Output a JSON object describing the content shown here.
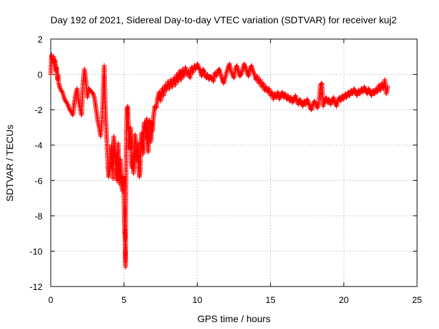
{
  "chart_data": {
    "type": "scatter",
    "title": "Day 192 of 2021, Sidereal Day-to-day VTEC variation (SDTVAR) for receiver kuj2",
    "xlabel": "GPS time / hours",
    "ylabel": "SDTVAR / TECUs",
    "xlim": [
      0,
      25
    ],
    "ylim": [
      -12,
      2
    ],
    "xticks": [
      0,
      5,
      10,
      15,
      20,
      25
    ],
    "yticks": [
      2,
      0,
      -2,
      -4,
      -6,
      -8,
      -10,
      -12
    ],
    "grid": true,
    "marker": "plus",
    "color": "#ff0000",
    "series": [
      {
        "name": "SDTVAR",
        "points": [
          [
            0.0,
            0.0
          ],
          [
            0.05,
            1.1
          ],
          [
            0.1,
            0.9
          ],
          [
            0.15,
            0.7
          ],
          [
            0.2,
            1.0
          ],
          [
            0.25,
            0.5
          ],
          [
            0.3,
            0.8
          ],
          [
            0.35,
            0.2
          ],
          [
            0.4,
            0.4
          ],
          [
            0.45,
            -0.3
          ],
          [
            0.5,
            0.0
          ],
          [
            0.55,
            -0.5
          ],
          [
            0.6,
            -0.7
          ],
          [
            0.7,
            -0.9
          ],
          [
            0.8,
            -1.0
          ],
          [
            0.9,
            -1.3
          ],
          [
            1.0,
            -1.5
          ],
          [
            1.1,
            -1.6
          ],
          [
            1.2,
            -1.8
          ],
          [
            1.3,
            -2.0
          ],
          [
            1.4,
            -2.1
          ],
          [
            1.5,
            -2.3
          ],
          [
            1.6,
            -1.7
          ],
          [
            1.7,
            -1.1
          ],
          [
            1.8,
            -0.8
          ],
          [
            1.9,
            -1.5
          ],
          [
            2.0,
            -1.9
          ],
          [
            2.1,
            -2.3
          ],
          [
            2.2,
            -0.5
          ],
          [
            2.3,
            0.3
          ],
          [
            2.4,
            -0.4
          ],
          [
            2.5,
            -1.3
          ],
          [
            2.6,
            -0.8
          ],
          [
            2.7,
            -0.9
          ],
          [
            2.8,
            -1.0
          ],
          [
            2.9,
            -1.1
          ],
          [
            3.0,
            -1.4
          ],
          [
            3.1,
            -2.0
          ],
          [
            3.2,
            -2.6
          ],
          [
            3.3,
            -3.0
          ],
          [
            3.4,
            -3.5
          ],
          [
            3.5,
            -2.6
          ],
          [
            3.6,
            -0.5
          ],
          [
            3.65,
            0.5
          ],
          [
            3.7,
            -1.2
          ],
          [
            3.75,
            -2.5
          ],
          [
            3.8,
            -3.3
          ],
          [
            3.85,
            -4.2
          ],
          [
            3.9,
            -5.2
          ],
          [
            3.95,
            -5.8
          ],
          [
            4.0,
            -5.5
          ],
          [
            4.05,
            -4.8
          ],
          [
            4.1,
            -5.2
          ],
          [
            4.15,
            -4.0
          ],
          [
            4.2,
            -4.6
          ],
          [
            4.25,
            -5.9
          ],
          [
            4.3,
            -3.5
          ],
          [
            4.35,
            -4.3
          ],
          [
            4.4,
            -5.0
          ],
          [
            4.45,
            -4.5
          ],
          [
            4.5,
            -6.0
          ],
          [
            4.55,
            -5.3
          ],
          [
            4.6,
            -3.9
          ],
          [
            4.65,
            -5.5
          ],
          [
            4.7,
            -6.2
          ],
          [
            4.75,
            -4.8
          ],
          [
            4.8,
            -5.6
          ],
          [
            4.85,
            -6.3
          ],
          [
            4.9,
            -6.6
          ],
          [
            4.95,
            -5.8
          ],
          [
            5.0,
            -7.0
          ],
          [
            5.02,
            -8.2
          ],
          [
            5.04,
            -8.9
          ],
          [
            5.06,
            -9.0
          ],
          [
            5.08,
            -9.7
          ],
          [
            5.1,
            -10.9
          ],
          [
            5.12,
            -7.5
          ],
          [
            5.15,
            -4.0
          ],
          [
            5.2,
            -2.0
          ],
          [
            5.25,
            -1.8
          ],
          [
            5.3,
            -2.8
          ],
          [
            5.35,
            -3.5
          ],
          [
            5.4,
            -4.2
          ],
          [
            5.45,
            -3.0
          ],
          [
            5.5,
            -5.0
          ],
          [
            5.55,
            -5.3
          ],
          [
            5.6,
            -4.5
          ],
          [
            5.65,
            -5.6
          ],
          [
            5.7,
            -4.8
          ],
          [
            5.75,
            -3.4
          ],
          [
            5.8,
            -3.8
          ],
          [
            5.85,
            -4.6
          ],
          [
            5.9,
            -4.9
          ],
          [
            5.95,
            -3.9
          ],
          [
            6.0,
            -5.2
          ],
          [
            6.05,
            -5.8
          ],
          [
            6.1,
            -5.5
          ],
          [
            6.15,
            -4.0
          ],
          [
            6.2,
            -3.3
          ],
          [
            6.25,
            -4.2
          ],
          [
            6.3,
            -4.5
          ],
          [
            6.35,
            -3.0
          ],
          [
            6.4,
            -2.7
          ],
          [
            6.45,
            -3.6
          ],
          [
            6.5,
            -3.1
          ],
          [
            6.55,
            -2.5
          ],
          [
            6.6,
            -3.9
          ],
          [
            6.65,
            -4.4
          ],
          [
            6.7,
            -3.2
          ],
          [
            6.75,
            -2.6
          ],
          [
            6.8,
            -2.9
          ],
          [
            6.85,
            -3.8
          ],
          [
            6.9,
            -2.7
          ],
          [
            6.95,
            -3.2
          ],
          [
            7.0,
            -2.5
          ],
          [
            7.1,
            -1.8
          ],
          [
            7.2,
            -1.9
          ],
          [
            7.3,
            -1.3
          ],
          [
            7.4,
            -1.0
          ],
          [
            7.5,
            -1.5
          ],
          [
            7.6,
            -0.8
          ],
          [
            7.7,
            -1.2
          ],
          [
            7.8,
            -0.6
          ],
          [
            7.9,
            -0.9
          ],
          [
            8.0,
            -0.4
          ],
          [
            8.1,
            -0.8
          ],
          [
            8.2,
            -0.3
          ],
          [
            8.3,
            -0.7
          ],
          [
            8.4,
            -0.2
          ],
          [
            8.5,
            -0.6
          ],
          [
            8.6,
            0.0
          ],
          [
            8.7,
            -0.4
          ],
          [
            8.8,
            0.2
          ],
          [
            8.9,
            -0.3
          ],
          [
            9.0,
            0.3
          ],
          [
            9.1,
            -0.1
          ],
          [
            9.2,
            0.4
          ],
          [
            9.3,
            0.0
          ],
          [
            9.4,
            0.2
          ],
          [
            9.5,
            -0.2
          ],
          [
            9.6,
            0.4
          ],
          [
            9.7,
            0.1
          ],
          [
            9.8,
            0.5
          ],
          [
            9.9,
            0.3
          ],
          [
            10.0,
            0.6
          ],
          [
            10.1,
            0.4
          ],
          [
            10.2,
            0.2
          ],
          [
            10.3,
            -0.1
          ],
          [
            10.4,
            0.3
          ],
          [
            10.5,
            0.1
          ],
          [
            10.6,
            -0.2
          ],
          [
            10.7,
            0.0
          ],
          [
            10.8,
            -0.3
          ],
          [
            10.9,
            -0.1
          ],
          [
            11.0,
            -0.2
          ],
          [
            11.1,
            -0.4
          ],
          [
            11.2,
            0.1
          ],
          [
            11.3,
            -0.1
          ],
          [
            11.4,
            0.2
          ],
          [
            11.5,
            0.3
          ],
          [
            11.6,
            0.0
          ],
          [
            11.7,
            -0.3
          ],
          [
            11.8,
            -0.5
          ],
          [
            11.9,
            -0.2
          ],
          [
            12.0,
            0.1
          ],
          [
            12.1,
            0.4
          ],
          [
            12.2,
            0.6
          ],
          [
            12.3,
            0.2
          ],
          [
            12.4,
            0.0
          ],
          [
            12.5,
            -0.2
          ],
          [
            12.6,
            0.3
          ],
          [
            12.7,
            0.5
          ],
          [
            12.8,
            0.2
          ],
          [
            12.9,
            -0.1
          ],
          [
            13.0,
            0.0
          ],
          [
            13.1,
            0.3
          ],
          [
            13.2,
            0.6
          ],
          [
            13.3,
            0.4
          ],
          [
            13.4,
            0.1
          ],
          [
            13.5,
            -0.1
          ],
          [
            13.6,
            0.3
          ],
          [
            13.7,
            0.5
          ],
          [
            13.8,
            0.2
          ],
          [
            13.9,
            0.0
          ],
          [
            14.0,
            -0.3
          ],
          [
            14.1,
            -0.1
          ],
          [
            14.2,
            -0.5
          ],
          [
            14.3,
            -0.3
          ],
          [
            14.4,
            -0.7
          ],
          [
            14.5,
            -0.5
          ],
          [
            14.6,
            -0.9
          ],
          [
            14.7,
            -0.7
          ],
          [
            14.8,
            -1.0
          ],
          [
            14.9,
            -0.8
          ],
          [
            15.0,
            -1.2
          ],
          [
            15.1,
            -1.0
          ],
          [
            15.2,
            -1.4
          ],
          [
            15.3,
            -1.1
          ],
          [
            15.4,
            -1.3
          ],
          [
            15.5,
            -1.0
          ],
          [
            15.6,
            -1.4
          ],
          [
            15.7,
            -1.2
          ],
          [
            15.8,
            -1.0
          ],
          [
            15.9,
            -1.3
          ],
          [
            16.0,
            -1.1
          ],
          [
            16.1,
            -1.4
          ],
          [
            16.2,
            -1.2
          ],
          [
            16.3,
            -1.5
          ],
          [
            16.4,
            -1.3
          ],
          [
            16.5,
            -1.6
          ],
          [
            16.6,
            -1.4
          ],
          [
            16.7,
            -1.2
          ],
          [
            16.8,
            -1.5
          ],
          [
            16.9,
            -1.7
          ],
          [
            17.0,
            -1.4
          ],
          [
            17.1,
            -1.6
          ],
          [
            17.2,
            -1.8
          ],
          [
            17.3,
            -1.5
          ],
          [
            17.4,
            -1.7
          ],
          [
            17.5,
            -1.4
          ],
          [
            17.6,
            -1.6
          ],
          [
            17.7,
            -1.9
          ],
          [
            17.8,
            -2.0
          ],
          [
            17.9,
            -1.7
          ],
          [
            18.0,
            -1.5
          ],
          [
            18.1,
            -1.7
          ],
          [
            18.2,
            -1.9
          ],
          [
            18.3,
            -1.6
          ],
          [
            18.4,
            -0.6
          ],
          [
            18.5,
            -0.5
          ],
          [
            18.6,
            -1.8
          ],
          [
            18.7,
            -1.5
          ],
          [
            18.8,
            -1.3
          ],
          [
            18.9,
            -1.6
          ],
          [
            19.0,
            -1.4
          ],
          [
            19.1,
            -1.7
          ],
          [
            19.2,
            -1.5
          ],
          [
            19.3,
            -1.3
          ],
          [
            19.4,
            -1.6
          ],
          [
            19.5,
            -1.8
          ],
          [
            19.6,
            -1.5
          ],
          [
            19.7,
            -1.3
          ],
          [
            19.8,
            -1.5
          ],
          [
            19.9,
            -1.2
          ],
          [
            20.0,
            -1.4
          ],
          [
            20.1,
            -1.1
          ],
          [
            20.2,
            -1.3
          ],
          [
            20.3,
            -1.0
          ],
          [
            20.4,
            -1.2
          ],
          [
            20.5,
            -0.9
          ],
          [
            20.6,
            -1.1
          ],
          [
            20.7,
            -0.8
          ],
          [
            20.8,
            -1.0
          ],
          [
            20.9,
            -1.2
          ],
          [
            21.0,
            -0.9
          ],
          [
            21.1,
            -1.1
          ],
          [
            21.2,
            -0.8
          ],
          [
            21.3,
            -1.0
          ],
          [
            21.4,
            -0.7
          ],
          [
            21.5,
            -0.9
          ],
          [
            21.6,
            -1.1
          ],
          [
            21.7,
            -0.8
          ],
          [
            21.8,
            -1.0
          ],
          [
            21.9,
            -1.2
          ],
          [
            22.0,
            -0.9
          ],
          [
            22.1,
            -1.1
          ],
          [
            22.2,
            -0.8
          ],
          [
            22.3,
            -1.0
          ],
          [
            22.4,
            -0.6
          ],
          [
            22.5,
            -0.9
          ],
          [
            22.6,
            -0.5
          ],
          [
            22.7,
            -0.8
          ],
          [
            22.8,
            -0.3
          ],
          [
            22.9,
            -1.1
          ],
          [
            23.0,
            -0.7
          ]
        ]
      }
    ]
  }
}
